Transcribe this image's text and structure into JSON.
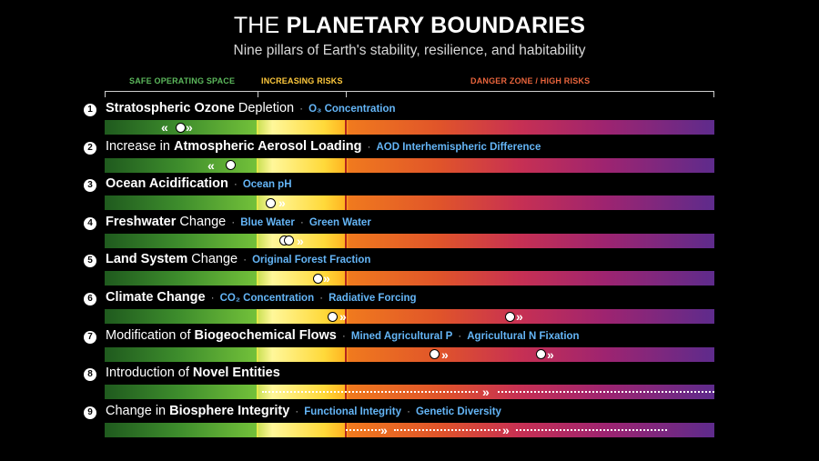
{
  "title": {
    "light": "THE",
    "bold": "PLANETARY BOUNDARIES"
  },
  "subtitle": "Nine pillars of Earth's stability, resilience, and habitability",
  "zones": {
    "safe": "SAFE OPERATING SPACE",
    "increasing": "INCREASING RISKS",
    "danger": "DANGER ZONE / HIGH RISKS"
  },
  "colors": {
    "safe": "#5cb85c",
    "increasing": "#ffc93c",
    "danger": "#e8643c",
    "metric": "#64b5f6"
  },
  "rows": [
    {
      "num": "1",
      "pre": "",
      "bold": "Stratospheric Ozone",
      "post": " Depletion",
      "m1": "O₃ Concentration",
      "m2": ""
    },
    {
      "num": "2",
      "pre": "Increase in ",
      "bold": "Atmospheric Aerosol Loading",
      "post": "",
      "m1": "AOD Interhemispheric Difference",
      "m2": ""
    },
    {
      "num": "3",
      "pre": "",
      "bold": "Ocean Acidification",
      "post": "",
      "m1": "Ocean pH",
      "m2": ""
    },
    {
      "num": "4",
      "pre": "",
      "bold": "Freshwater",
      "post": " Change",
      "m1": "Blue Water",
      "m2": "Green Water"
    },
    {
      "num": "5",
      "pre": "",
      "bold": "Land System",
      "post": " Change",
      "m1": "Original Forest Fraction",
      "m2": ""
    },
    {
      "num": "6",
      "pre": "",
      "bold": "Climate Change",
      "post": "",
      "m1": "CO₂ Concentration",
      "m2": "Radiative Forcing"
    },
    {
      "num": "7",
      "pre": "Modification of ",
      "bold": "Biogeochemical Flows",
      "post": "",
      "m1": "Mined Agricultural P",
      "m2": "Agricultural N Fixation"
    },
    {
      "num": "8",
      "pre": "Introduction of ",
      "bold": "Novel Entities",
      "post": "",
      "m1": "",
      "m2": ""
    },
    {
      "num": "9",
      "pre": "Change in ",
      "bold": "Biosphere Integrity",
      "post": "",
      "m1": "Functional Integrity",
      "m2": "Genetic Diversity"
    }
  ]
}
